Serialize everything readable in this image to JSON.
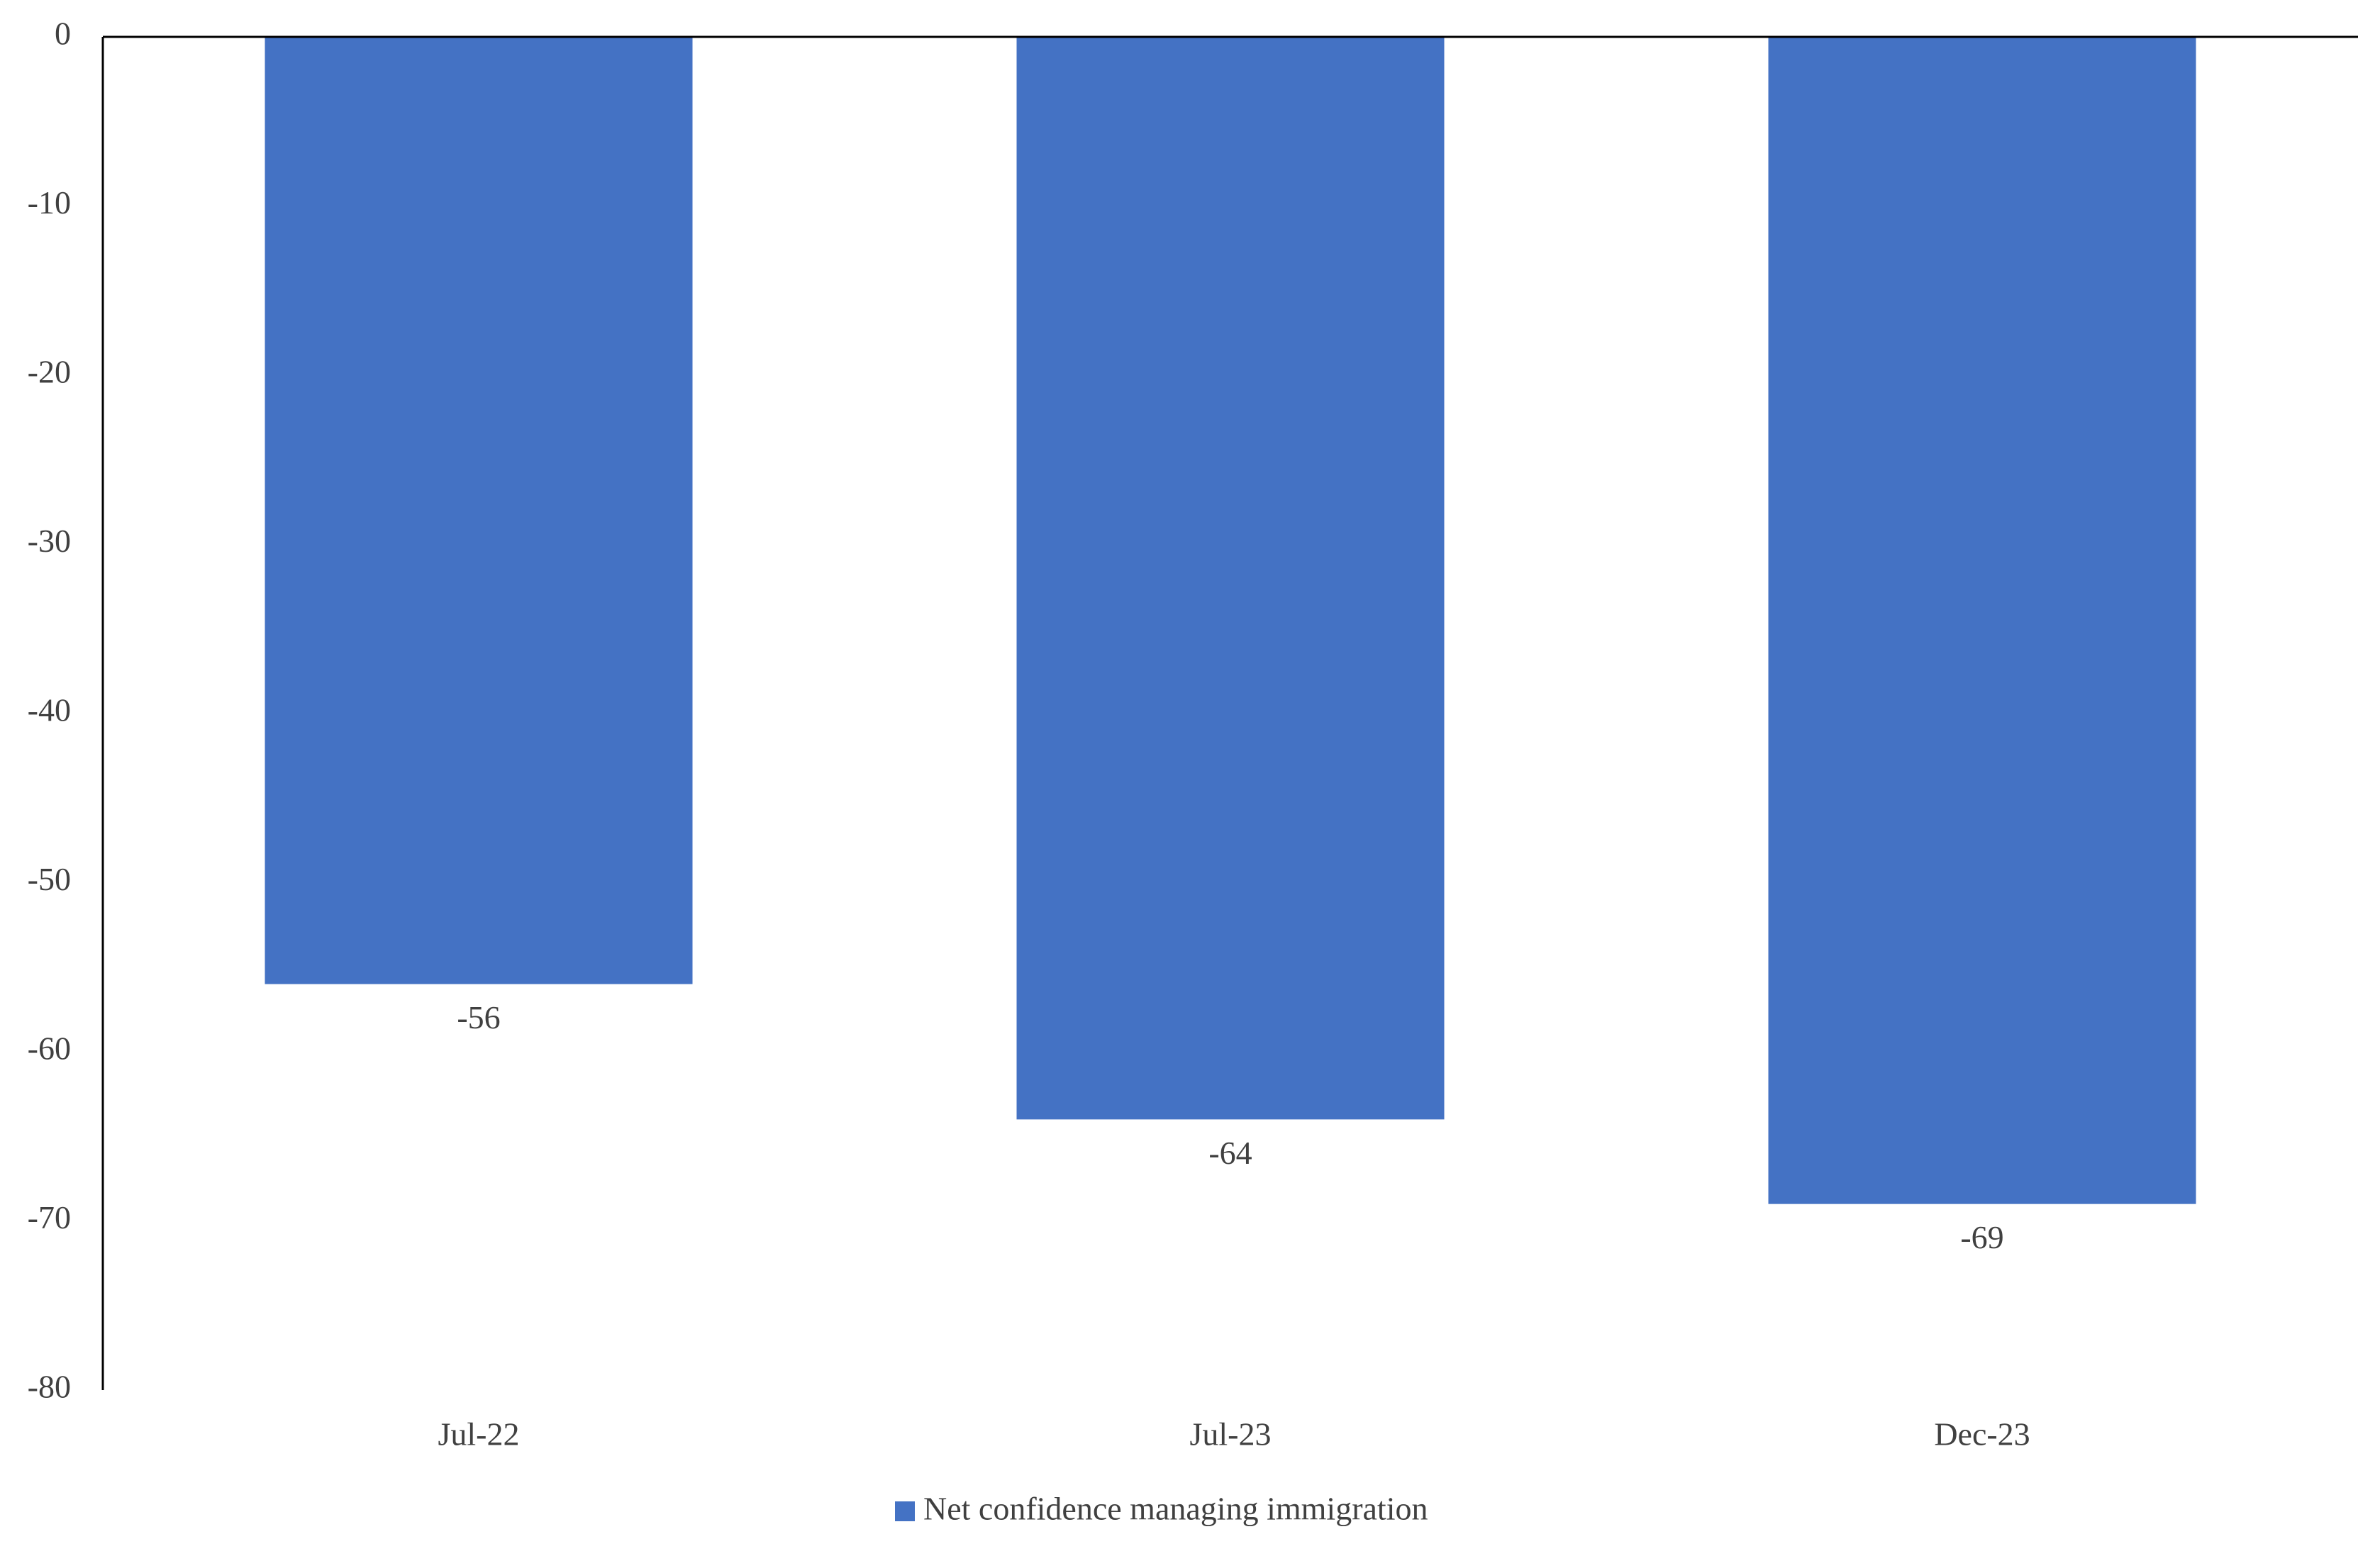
{
  "chart_data": {
    "type": "bar",
    "title": "",
    "xlabel": "",
    "ylabel": "",
    "categories": [
      "Jul-22",
      "Jul-23",
      "Dec-23"
    ],
    "series": [
      {
        "name": "Net confidence managing immigration",
        "values": [
          -56,
          -64,
          -69
        ],
        "data_labels": [
          "-56",
          "-64",
          "-69"
        ],
        "color": "#4472C4"
      }
    ],
    "ylim": [
      -80,
      0
    ],
    "y_ticks": [
      0,
      -10,
      -20,
      -30,
      -40,
      -50,
      -60,
      -70,
      -80
    ],
    "y_tick_labels": [
      "0",
      "-10",
      "-20",
      "-30",
      "-40",
      "-50",
      "-60",
      "-70",
      "-80"
    ],
    "grid": false,
    "legend_position": "bottom-center"
  }
}
